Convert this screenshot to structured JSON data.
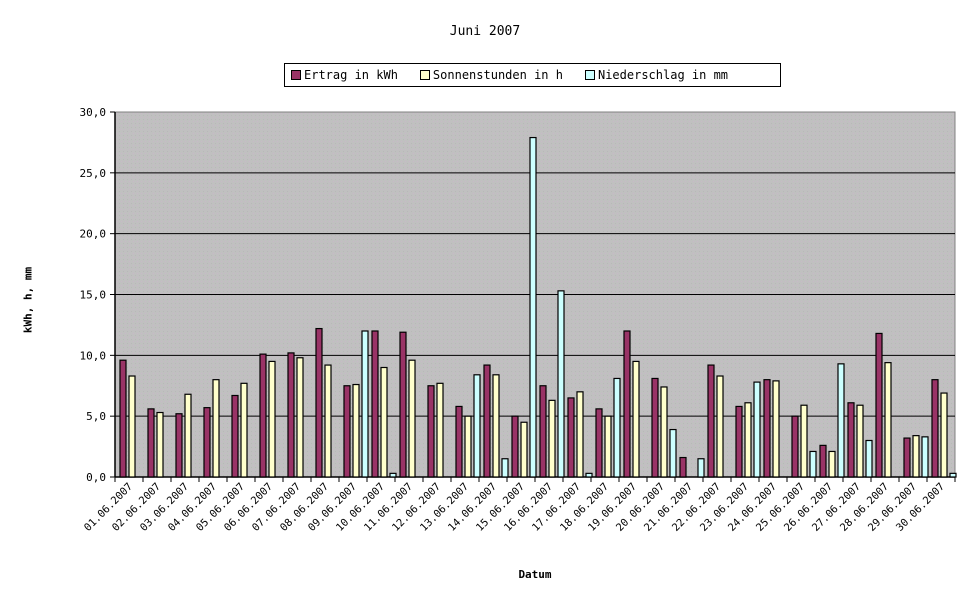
{
  "chart_data": {
    "type": "bar",
    "title": "Juni 2007",
    "xlabel": "Datum",
    "ylabel": "kWh, h, mm",
    "ylim": [
      0,
      30
    ],
    "yticks": [
      "0,0",
      "5,0",
      "10,0",
      "15,0",
      "20,0",
      "25,0",
      "30,0"
    ],
    "grid": true,
    "legend_position": "top",
    "categories": [
      "01.06.2007",
      "02.06.2007",
      "03.06.2007",
      "04.06.2007",
      "05.06.2007",
      "06.06.2007",
      "07.06.2007",
      "08.06.2007",
      "09.06.2007",
      "10.06.2007",
      "11.06.2007",
      "12.06.2007",
      "13.06.2007",
      "14.06.2007",
      "15.06.2007",
      "16.06.2007",
      "17.06.2007",
      "18.06.2007",
      "19.06.2007",
      "20.06.2007",
      "21.06.2007",
      "22.06.2007",
      "23.06.2007",
      "24.06.2007",
      "25.06.2007",
      "26.06.2007",
      "27.06.2007",
      "28.06.2007",
      "29.06.2007",
      "30.06.2007"
    ],
    "series": [
      {
        "name": "Ertrag in kWh",
        "color": "#993366",
        "values": [
          9.6,
          5.6,
          5.2,
          5.7,
          6.7,
          10.1,
          10.2,
          12.2,
          7.5,
          12.0,
          11.9,
          7.5,
          5.8,
          9.2,
          5.0,
          7.5,
          6.5,
          5.6,
          12.0,
          8.1,
          1.6,
          9.2,
          5.8,
          8.0,
          5.0,
          2.6,
          6.1,
          11.8,
          3.2,
          8.0
        ]
      },
      {
        "name": "Sonnenstunden in h",
        "color": "#FFFFCC",
        "values": [
          8.3,
          5.3,
          6.8,
          8.0,
          7.7,
          9.5,
          9.8,
          9.2,
          7.6,
          9.0,
          9.6,
          7.7,
          5.0,
          8.4,
          4.5,
          6.3,
          7.0,
          5.0,
          9.5,
          7.4,
          0,
          8.3,
          6.1,
          7.9,
          5.9,
          2.1,
          5.9,
          9.4,
          3.4,
          6.9
        ]
      },
      {
        "name": "Niederschlag in mm",
        "color": "#CCFFFF",
        "values": [
          0,
          0,
          0,
          0,
          0,
          0,
          0,
          0,
          12.0,
          0.3,
          0,
          0,
          8.4,
          1.5,
          27.9,
          15.3,
          0.3,
          8.1,
          0,
          3.9,
          1.5,
          0,
          7.8,
          0,
          2.1,
          9.3,
          3.0,
          0,
          3.3,
          0.3
        ]
      }
    ]
  },
  "legend": {
    "items": [
      {
        "label": "Ertrag in kWh",
        "color": "#993366"
      },
      {
        "label": "Sonnenstunden in h",
        "color": "#FFFFCC"
      },
      {
        "label": "Niederschlag in mm",
        "color": "#CCFFFF"
      }
    ]
  },
  "plot": {
    "background": "#C0C0C0"
  }
}
